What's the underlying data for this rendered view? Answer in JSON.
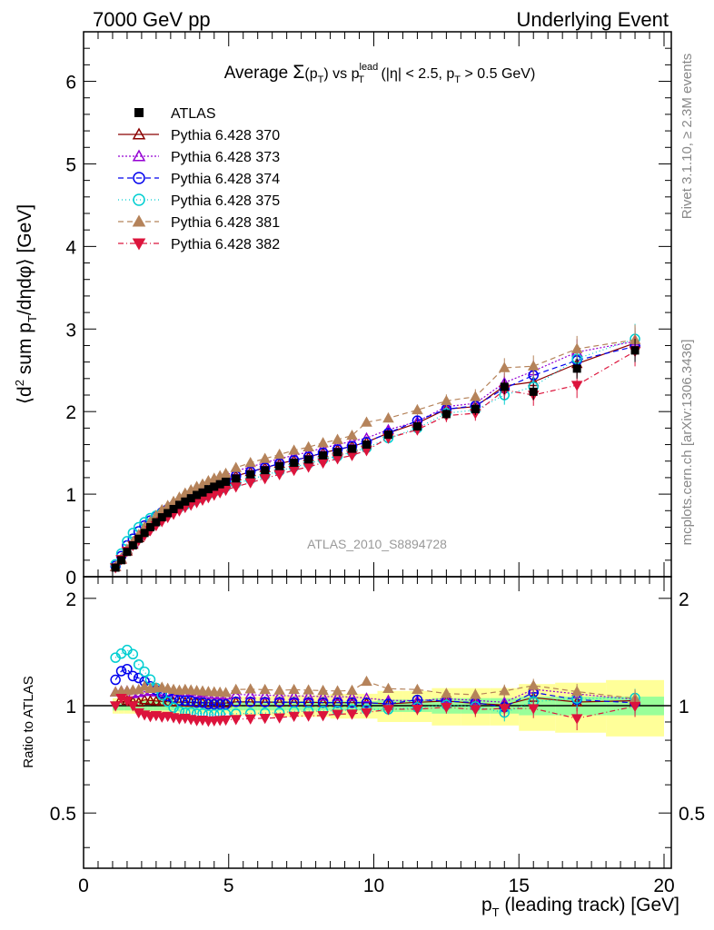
{
  "header": {
    "left": "7000 GeV pp",
    "right": "Underlying Event"
  },
  "chart_data": [
    {
      "type": "line",
      "panel": "main",
      "title": "Average Σ(pT) vs pT lead (|η| < 2.5, pT > 0.5 GeV)",
      "title_parts": {
        "t1": "Average ",
        "sym": "Σ",
        "t2": "(p",
        "sub1": "T",
        "t3": ")  vs  p",
        "sup1": "lead",
        "sub2": "T",
        "t4": "  (|η| < 2.5, p",
        "sub3": "T",
        "t5": " > 0.5 GeV)"
      },
      "ylabel": "⟨d² sum pT/dηdφ⟩ [GeV]",
      "ylabel_parts": {
        "a": "⟨d",
        "sup": "2",
        "b": " sum p",
        "sub": "T",
        "c": "/dηdφ⟩ [GeV]"
      },
      "xlim": [
        0,
        20
      ],
      "ylim": [
        0,
        6.6
      ],
      "yticks": [
        "0",
        "1",
        "2",
        "3",
        "4",
        "5",
        "6"
      ],
      "watermark": "ATLAS_2010_S8894728",
      "side_text_top": "Rivet 3.1.10, ≥ 2.3M events",
      "side_text_bottom": "mcplots.cern.ch [arXiv:1306.3436]",
      "legend_position": "top-left",
      "x": [
        1.1,
        1.3,
        1.5,
        1.7,
        1.9,
        2.1,
        2.3,
        2.5,
        2.7,
        2.9,
        3.1,
        3.3,
        3.5,
        3.7,
        3.9,
        4.1,
        4.3,
        4.5,
        4.7,
        4.9,
        5.25,
        5.75,
        6.25,
        6.75,
        7.25,
        7.75,
        8.25,
        8.75,
        9.25,
        9.75,
        10.5,
        11.5,
        12.5,
        13.5,
        14.5,
        15.5,
        17.0,
        19.0
      ],
      "atlas": {
        "name": "ATLAS",
        "values": [
          0.11,
          0.2,
          0.3,
          0.38,
          0.46,
          0.53,
          0.6,
          0.66,
          0.72,
          0.77,
          0.82,
          0.87,
          0.91,
          0.95,
          0.99,
          1.02,
          1.06,
          1.09,
          1.12,
          1.15,
          1.19,
          1.24,
          1.29,
          1.34,
          1.38,
          1.42,
          1.47,
          1.51,
          1.55,
          1.6,
          1.72,
          1.82,
          1.97,
          2.03,
          2.3,
          2.24,
          2.52,
          2.74
        ],
        "stat_err": [
          0.01,
          0.01,
          0.01,
          0.01,
          0.01,
          0.01,
          0.01,
          0.01,
          0.01,
          0.01,
          0.01,
          0.01,
          0.01,
          0.01,
          0.01,
          0.01,
          0.01,
          0.01,
          0.01,
          0.01,
          0.02,
          0.02,
          0.02,
          0.02,
          0.02,
          0.02,
          0.02,
          0.03,
          0.03,
          0.03,
          0.04,
          0.05,
          0.06,
          0.07,
          0.09,
          0.1,
          0.12,
          0.14
        ],
        "band_total": [
          0.05,
          0.05,
          0.05,
          0.05,
          0.05,
          0.05,
          0.05,
          0.05,
          0.05,
          0.05,
          0.05,
          0.05,
          0.05,
          0.05,
          0.05,
          0.05,
          0.05,
          0.05,
          0.05,
          0.05,
          0.06,
          0.06,
          0.06,
          0.07,
          0.07,
          0.07,
          0.07,
          0.08,
          0.08,
          0.08,
          0.1,
          0.1,
          0.12,
          0.12,
          0.12,
          0.15,
          0.16,
          0.18
        ],
        "band_stat": [
          0.03,
          0.03,
          0.03,
          0.03,
          0.03,
          0.03,
          0.03,
          0.03,
          0.03,
          0.03,
          0.03,
          0.03,
          0.03,
          0.03,
          0.03,
          0.03,
          0.03,
          0.03,
          0.03,
          0.03,
          0.03,
          0.03,
          0.03,
          0.03,
          0.03,
          0.03,
          0.03,
          0.03,
          0.03,
          0.03,
          0.04,
          0.04,
          0.05,
          0.05,
          0.05,
          0.06,
          0.06,
          0.06
        ]
      },
      "series": [
        {
          "name": "Pythia 6.428 370",
          "color": "#8b0000",
          "marker": "triangle-open",
          "dash": "",
          "values": [
            0.12,
            0.21,
            0.31,
            0.39,
            0.47,
            0.55,
            0.62,
            0.68,
            0.74,
            0.79,
            0.84,
            0.89,
            0.93,
            0.97,
            1.01,
            1.04,
            1.08,
            1.11,
            1.14,
            1.17,
            1.22,
            1.27,
            1.32,
            1.37,
            1.41,
            1.45,
            1.5,
            1.54,
            1.58,
            1.63,
            1.74,
            1.86,
            2.03,
            2.06,
            2.31,
            2.36,
            2.58,
            2.83
          ]
        },
        {
          "name": "Pythia 6.428 373",
          "color": "#9400d3",
          "marker": "triangle-open",
          "dash": "2,2",
          "values": [
            0.12,
            0.22,
            0.33,
            0.41,
            0.5,
            0.58,
            0.66,
            0.72,
            0.79,
            0.84,
            0.9,
            0.95,
            0.99,
            1.04,
            1.07,
            1.11,
            1.14,
            1.17,
            1.2,
            1.23,
            1.28,
            1.33,
            1.38,
            1.43,
            1.47,
            1.51,
            1.56,
            1.6,
            1.64,
            1.68,
            1.78,
            1.88,
            2.06,
            2.1,
            2.35,
            2.49,
            2.72,
            2.85
          ]
        },
        {
          "name": "Pythia 6.428 374",
          "color": "#0000ee",
          "marker": "circle-open",
          "dash": "6,4",
          "values": [
            0.13,
            0.25,
            0.38,
            0.46,
            0.55,
            0.62,
            0.68,
            0.73,
            0.78,
            0.82,
            0.86,
            0.9,
            0.94,
            0.98,
            1.01,
            1.04,
            1.07,
            1.1,
            1.13,
            1.16,
            1.22,
            1.27,
            1.32,
            1.37,
            1.41,
            1.45,
            1.5,
            1.54,
            1.58,
            1.63,
            1.74,
            1.89,
            2.03,
            2.07,
            2.28,
            2.44,
            2.62,
            2.79
          ]
        },
        {
          "name": "Pythia 6.428 375",
          "color": "#00ced1",
          "marker": "circle-open",
          "dash": "1,3",
          "values": [
            0.15,
            0.28,
            0.43,
            0.53,
            0.6,
            0.66,
            0.71,
            0.74,
            0.77,
            0.79,
            0.81,
            0.84,
            0.87,
            0.91,
            0.94,
            0.97,
            1.0,
            1.03,
            1.06,
            1.09,
            1.13,
            1.18,
            1.23,
            1.28,
            1.33,
            1.37,
            1.42,
            1.46,
            1.51,
            1.56,
            1.68,
            1.8,
            1.98,
            2.02,
            2.2,
            2.3,
            2.64,
            2.88
          ]
        },
        {
          "name": "Pythia 6.428 381",
          "color": "#b5835a",
          "marker": "triangle-solid",
          "dash": "6,4",
          "values": [
            0.12,
            0.22,
            0.33,
            0.42,
            0.51,
            0.6,
            0.67,
            0.74,
            0.81,
            0.86,
            0.91,
            0.96,
            1.01,
            1.05,
            1.09,
            1.12,
            1.16,
            1.19,
            1.22,
            1.25,
            1.32,
            1.38,
            1.43,
            1.48,
            1.53,
            1.57,
            1.62,
            1.66,
            1.71,
            1.87,
            1.92,
            2.02,
            2.13,
            2.18,
            2.53,
            2.55,
            2.76,
            2.87
          ]
        },
        {
          "name": "Pythia 6.428 382",
          "color": "#dc143c",
          "marker": "triangle-down-solid",
          "dash": "6,3,1,3",
          "values": [
            0.11,
            0.21,
            0.31,
            0.38,
            0.44,
            0.5,
            0.56,
            0.62,
            0.67,
            0.72,
            0.76,
            0.8,
            0.84,
            0.87,
            0.9,
            0.93,
            0.96,
            0.99,
            1.02,
            1.05,
            1.09,
            1.14,
            1.19,
            1.24,
            1.29,
            1.33,
            1.38,
            1.43,
            1.47,
            1.53,
            1.68,
            1.78,
            1.95,
            1.98,
            2.26,
            2.2,
            2.32,
            2.73
          ]
        }
      ]
    },
    {
      "type": "line",
      "panel": "ratio",
      "ylabel": "Ratio to ATLAS",
      "xlabel": "pT (leading track) [GeV]",
      "xlabel_parts": {
        "a": "p",
        "sub": "T",
        "b": " (leading track) [GeV]"
      },
      "xlim": [
        0,
        20
      ],
      "ylim": [
        0.35,
        2.3
      ],
      "log_y": true,
      "xticks": [
        "0",
        "5",
        "10",
        "15",
        "20"
      ],
      "yticks": [
        "0.5",
        "1",
        "2"
      ]
    }
  ]
}
